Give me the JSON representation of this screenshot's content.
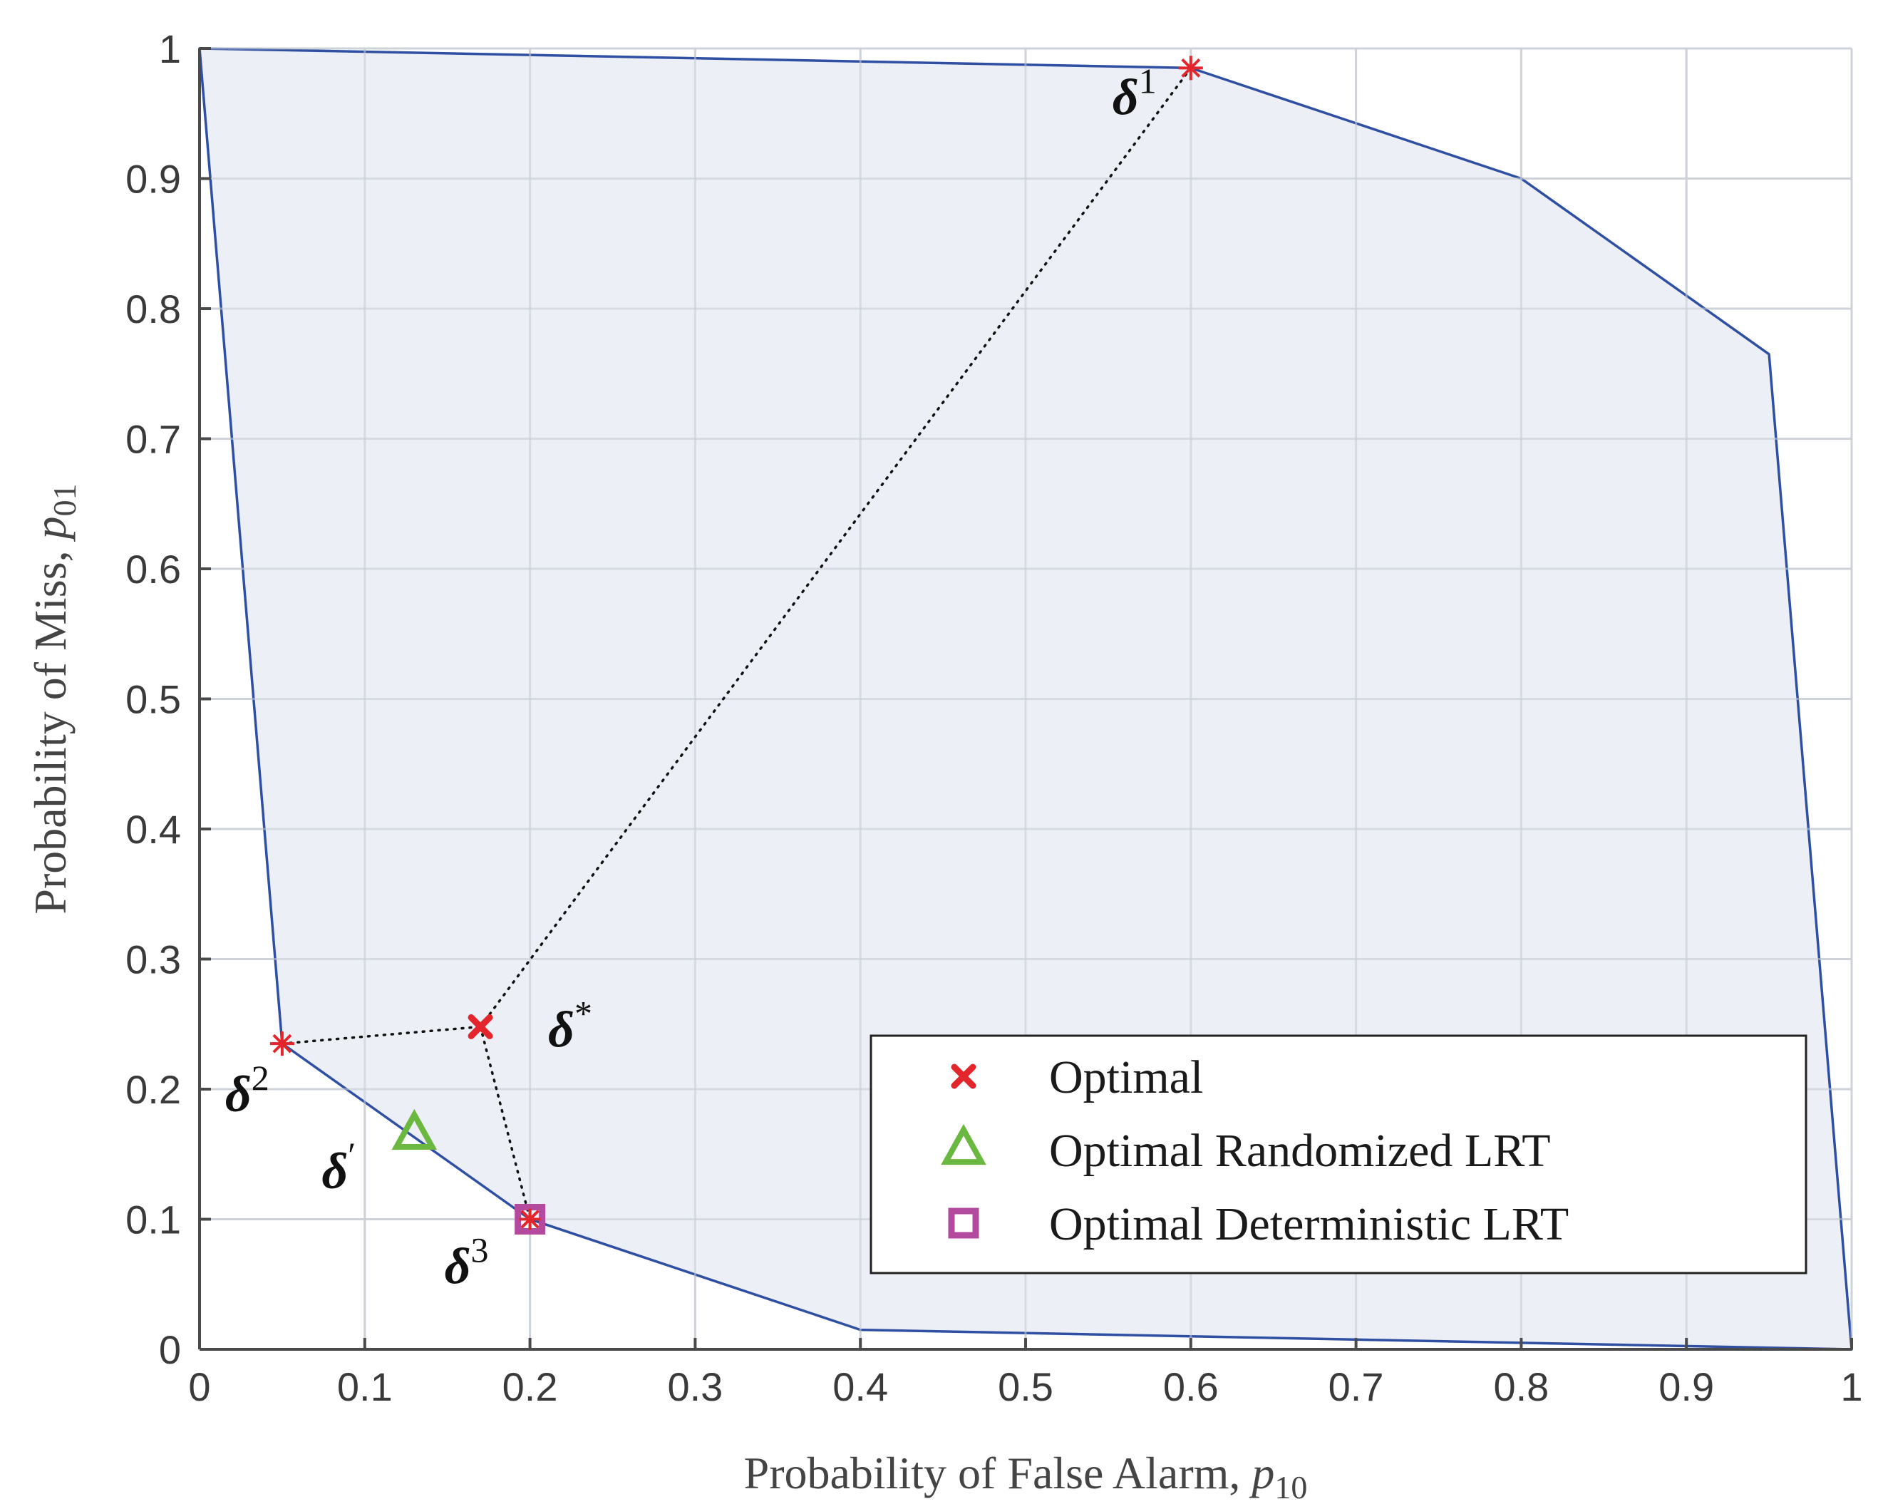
{
  "chart_data": {
    "type": "scatter",
    "xlabel": {
      "text": "Probability of False Alarm, ",
      "var": "p",
      "sub": "10"
    },
    "ylabel": {
      "text": "Probability of Miss, ",
      "var": "p",
      "sub": "01"
    },
    "xlim": [
      0,
      1
    ],
    "ylim": [
      0,
      1
    ],
    "xticks": [
      0,
      0.1,
      0.2,
      0.3,
      0.4,
      0.5,
      0.6,
      0.7,
      0.8,
      0.9,
      1
    ],
    "yticks": [
      0,
      0.1,
      0.2,
      0.3,
      0.4,
      0.5,
      0.6,
      0.7,
      0.8,
      0.9,
      1
    ],
    "xtick_labels": [
      "0",
      "0.1",
      "0.2",
      "0.3",
      "0.4",
      "0.5",
      "0.6",
      "0.7",
      "0.8",
      "0.9",
      "1"
    ],
    "ytick_labels": [
      "0",
      "0.1",
      "0.2",
      "0.3",
      "0.4",
      "0.5",
      "0.6",
      "0.7",
      "0.8",
      "0.9",
      "1"
    ],
    "grid": true,
    "region": {
      "fill": "#e9ecf3",
      "stroke": "#2f4fa3",
      "x": [
        0,
        0.6,
        0.8,
        0.95,
        1,
        0.4,
        0.2,
        0.05,
        0
      ],
      "y": [
        1,
        0.985,
        0.9,
        0.765,
        0,
        0.015,
        0.1,
        0.235,
        1
      ]
    },
    "extreme_points": {
      "color": "#e3262b",
      "x": [
        0.6,
        0.05,
        0.2
      ],
      "y": [
        0.985,
        0.235,
        0.1
      ]
    },
    "dotted_lines": {
      "color": "#111111",
      "segments": [
        {
          "x": [
            0.6,
            0.17
          ],
          "y": [
            0.985,
            0.248
          ]
        },
        {
          "x": [
            0.05,
            0.17
          ],
          "y": [
            0.235,
            0.248
          ]
        },
        {
          "x": [
            0.17,
            0.2
          ],
          "y": [
            0.248,
            0.1
          ]
        }
      ]
    },
    "series": [
      {
        "name": "Optimal",
        "marker": "x",
        "color": "#e3262b",
        "x": [
          0.17
        ],
        "y": [
          0.248
        ]
      },
      {
        "name": "Optimal Randomized LRT",
        "marker": "triangle",
        "color": "#6ab83f",
        "x": [
          0.13
        ],
        "y": [
          0.165
        ]
      },
      {
        "name": "Optimal Deterministic LRT",
        "marker": "square",
        "color": "#b44a9e",
        "x": [
          0.2
        ],
        "y": [
          0.1
        ]
      }
    ],
    "annotations": [
      {
        "id": "delta1",
        "base": "δ",
        "sup": "1",
        "x": 0.6,
        "y": 0.985
      },
      {
        "id": "deltastar",
        "base": "δ",
        "sup": "*",
        "x": 0.17,
        "y": 0.248
      },
      {
        "id": "delta2",
        "base": "δ",
        "sup": "2",
        "x": 0.05,
        "y": 0.235
      },
      {
        "id": "deltaprime",
        "base": "δ",
        "sup": "′",
        "x": 0.13,
        "y": 0.165
      },
      {
        "id": "delta3",
        "base": "δ",
        "sup": "3",
        "x": 0.2,
        "y": 0.1
      }
    ],
    "legend": {
      "placement": "bottom-right"
    }
  }
}
